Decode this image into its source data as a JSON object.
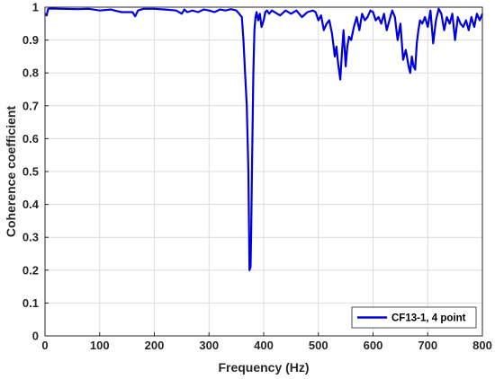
{
  "chart_data": {
    "type": "line",
    "xlabel": "Frequency (Hz)",
    "ylabel": "Coherence coefficient",
    "xlim": [
      0,
      800
    ],
    "ylim": [
      0,
      1
    ],
    "xticks": [
      0,
      100,
      200,
      300,
      400,
      500,
      600,
      700,
      800
    ],
    "yticks": [
      0,
      0.1,
      0.2,
      0.3,
      0.4,
      0.5,
      0.6,
      0.7,
      0.8,
      0.9,
      1
    ],
    "xtick_labels": [
      "0",
      "100",
      "200",
      "300",
      "400",
      "500",
      "600",
      "700",
      "800"
    ],
    "ytick_labels": [
      "0",
      "0.1",
      "0.2",
      "0.3",
      "0.4",
      "0.5",
      "0.6",
      "0.7",
      "0.8",
      "0.9",
      "1"
    ],
    "grid": true,
    "legend_position": "bottom-right",
    "series": [
      {
        "name": "CF13-1, 4 point",
        "color": "#0000dd",
        "x": [
          0,
          3,
          6,
          10,
          30,
          60,
          80,
          100,
          120,
          140,
          160,
          165,
          170,
          180,
          200,
          220,
          240,
          250,
          255,
          260,
          270,
          280,
          290,
          300,
          310,
          320,
          330,
          340,
          350,
          355,
          360,
          363,
          366,
          369,
          372,
          374,
          376,
          377,
          379,
          381,
          383,
          385,
          387,
          390,
          393,
          396,
          400,
          403,
          406,
          410,
          415,
          420,
          430,
          440,
          450,
          460,
          470,
          480,
          490,
          495,
          500,
          505,
          510,
          515,
          520,
          525,
          530,
          533,
          536,
          540,
          543,
          546,
          550,
          553,
          556,
          560,
          565,
          570,
          575,
          580,
          585,
          590,
          595,
          600,
          605,
          610,
          615,
          620,
          625,
          630,
          635,
          640,
          645,
          650,
          655,
          660,
          665,
          668,
          671,
          674,
          677,
          680,
          683,
          686,
          690,
          695,
          700,
          705,
          710,
          715,
          720,
          725,
          730,
          735,
          740,
          745,
          750,
          755,
          760,
          765,
          770,
          775,
          780,
          785,
          790,
          795,
          800
        ],
        "y": [
          0.98,
          0.975,
          0.995,
          0.996,
          0.995,
          0.994,
          0.995,
          0.99,
          0.993,
          0.985,
          0.985,
          0.972,
          0.99,
          0.995,
          0.995,
          0.993,
          0.99,
          0.98,
          0.993,
          0.985,
          0.99,
          0.985,
          0.993,
          0.99,
          0.985,
          0.993,
          0.99,
          0.994,
          0.99,
          0.98,
          0.97,
          0.9,
          0.8,
          0.7,
          0.5,
          0.2,
          0.21,
          0.3,
          0.55,
          0.8,
          0.93,
          0.97,
          0.985,
          0.96,
          0.98,
          0.94,
          0.96,
          0.985,
          0.99,
          0.98,
          0.99,
          0.985,
          0.975,
          0.99,
          0.98,
          0.99,
          0.97,
          0.985,
          0.99,
          0.985,
          0.96,
          0.975,
          0.93,
          0.95,
          0.96,
          0.92,
          0.85,
          0.88,
          0.83,
          0.78,
          0.86,
          0.93,
          0.82,
          0.88,
          0.91,
          0.9,
          0.94,
          0.97,
          0.93,
          0.98,
          0.96,
          0.97,
          0.99,
          0.985,
          0.96,
          0.97,
          0.95,
          0.98,
          0.93,
          0.96,
          0.99,
          0.97,
          0.9,
          0.95,
          0.84,
          0.87,
          0.82,
          0.8,
          0.85,
          0.82,
          0.81,
          0.89,
          0.93,
          0.96,
          0.95,
          0.97,
          0.94,
          0.99,
          0.89,
          0.96,
          0.995,
          0.98,
          0.93,
          0.97,
          0.95,
          0.98,
          0.9,
          0.97,
          0.95,
          0.94,
          0.96,
          0.93,
          0.97,
          0.94,
          0.98,
          0.96,
          0.98
        ]
      }
    ]
  }
}
